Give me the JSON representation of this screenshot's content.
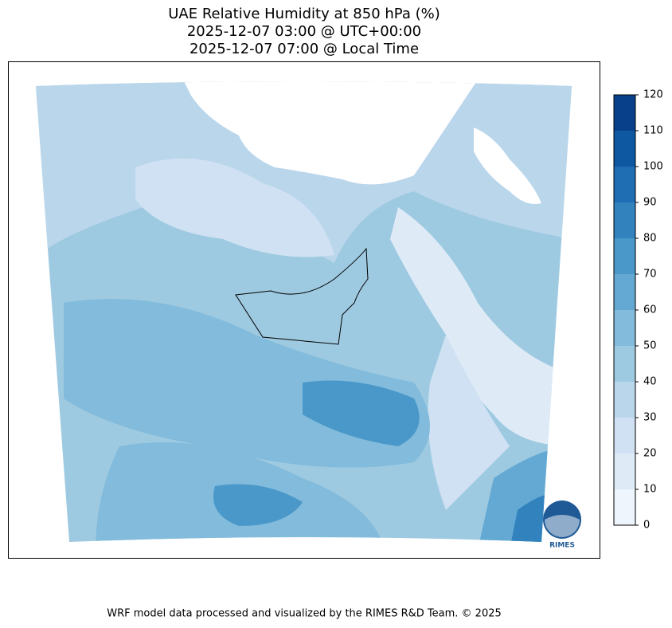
{
  "title": [
    "UAE Relative Humidity at 850 hPa (%)",
    "2025-12-07 03:00 @ UTC+00:00",
    "2025-12-07 07:00 @ Local Time"
  ],
  "colorbar": {
    "lim": [
      0,
      120
    ],
    "ticks": [
      0,
      10,
      20,
      30,
      40,
      50,
      60,
      70,
      80,
      90,
      100,
      110,
      120
    ],
    "colors": [
      "#eef5fc",
      "#deebf7",
      "#cfe1f2",
      "#bad6eb",
      "#9ecae1",
      "#82bbdb",
      "#64a9d3",
      "#4a98c9",
      "#3282be",
      "#1f6eb3",
      "#0d58a1",
      "#08408a"
    ]
  },
  "logo": "RIMES",
  "footer": "WRF model data processed and visualized by the RIMES R&D Team. © 2025"
}
